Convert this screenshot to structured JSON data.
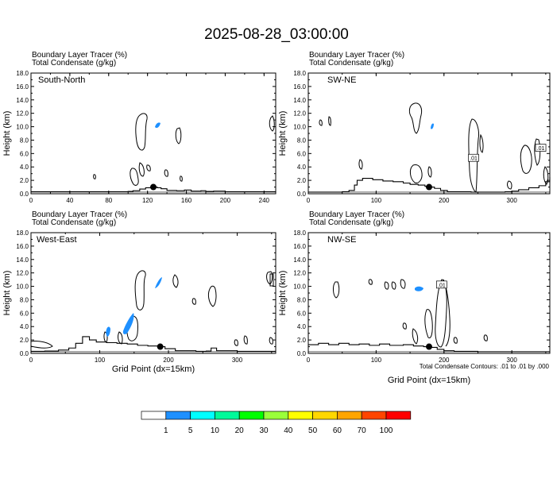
{
  "title": "2025-08-28_03:00:00",
  "panel_header_line1": "Boundary Layer Tracer   (%)",
  "panel_header_line2": "Total Condensate   (g/kg)",
  "ylabel": "Height (km)",
  "xlabel": "Grid Point (dx=15km)",
  "contour_note": "Total Condensate Contours: .01 to .01 by .000",
  "colorbar": {
    "colors": [
      "#ffffff",
      "#1e90ff",
      "#00ffff",
      "#00fa9a",
      "#00ff00",
      "#9aff3a",
      "#ffff00",
      "#ffd700",
      "#ffa500",
      "#ff4500",
      "#ff0000"
    ],
    "labels": [
      "1",
      "5",
      "10",
      "20",
      "30",
      "40",
      "50",
      "60",
      "70",
      "100"
    ]
  },
  "chart_data": [
    {
      "type": "line",
      "panel_label": "South-North",
      "xlim": [
        0,
        252
      ],
      "ylim": [
        0,
        18
      ],
      "x_ticks": [
        0,
        40,
        80,
        120,
        160,
        200,
        240
      ],
      "y_ticks": [
        "0.0",
        "2.0",
        "4.0",
        "6.0",
        "8.0",
        "10.0",
        "12.0",
        "14.0",
        "16.0",
        "18.0"
      ],
      "marker": {
        "x": 126,
        "y": 1.0
      },
      "terrain": [
        [
          0,
          0.3
        ],
        [
          50,
          0.3
        ],
        [
          90,
          0.3
        ],
        [
          100,
          0.35
        ],
        [
          105,
          0.45
        ],
        [
          112,
          0.7
        ],
        [
          118,
          0.9
        ],
        [
          124,
          1.0
        ],
        [
          130,
          0.9
        ],
        [
          134,
          0.75
        ],
        [
          140,
          0.5
        ],
        [
          150,
          0.45
        ],
        [
          158,
          0.55
        ],
        [
          165,
          0.4
        ],
        [
          175,
          0.45
        ],
        [
          180,
          0.35
        ],
        [
          188,
          0.4
        ],
        [
          200,
          0.3
        ],
        [
          230,
          0.3
        ],
        [
          252,
          0.35
        ]
      ],
      "labels": []
    },
    {
      "type": "line",
      "panel_label": "SW-NE",
      "xlim": [
        0,
        356
      ],
      "ylim": [
        0,
        18
      ],
      "x_ticks": [
        0,
        100,
        200,
        300
      ],
      "y_ticks": [
        "0.0",
        "2.0",
        "4.0",
        "6.0",
        "8.0",
        "10.0",
        "12.0",
        "14.0",
        "16.0",
        "18.0"
      ],
      "marker": {
        "x": 178,
        "y": 1.0
      },
      "terrain": [
        [
          0,
          0.25
        ],
        [
          30,
          0.25
        ],
        [
          50,
          0.3
        ],
        [
          60,
          0.5
        ],
        [
          68,
          1.3
        ],
        [
          72,
          2.0
        ],
        [
          80,
          2.3
        ],
        [
          95,
          2.1
        ],
        [
          110,
          1.9
        ],
        [
          125,
          1.8
        ],
        [
          140,
          1.6
        ],
        [
          150,
          1.4
        ],
        [
          162,
          1.3
        ],
        [
          172,
          1.1
        ],
        [
          180,
          1.0
        ],
        [
          186,
          0.8
        ],
        [
          195,
          0.5
        ],
        [
          205,
          0.3
        ],
        [
          240,
          0.25
        ],
        [
          290,
          0.3
        ],
        [
          300,
          0.4
        ],
        [
          310,
          0.6
        ],
        [
          325,
          0.9
        ],
        [
          340,
          1.2
        ],
        [
          350,
          1.8
        ],
        [
          356,
          2.5
        ]
      ],
      "labels": [
        {
          "x": 243,
          "y": 5.3,
          "text": ".01"
        },
        {
          "x": 342,
          "y": 6.8,
          "text": ".01"
        }
      ]
    },
    {
      "type": "line",
      "panel_label": "West-East",
      "xlim": [
        0,
        356
      ],
      "ylim": [
        0,
        18
      ],
      "x_ticks": [
        0,
        100,
        200,
        300
      ],
      "y_ticks": [
        "0.0",
        "2.0",
        "4.0",
        "6.0",
        "8.0",
        "10.0",
        "12.0",
        "14.0",
        "16.0",
        "18.0"
      ],
      "marker": {
        "x": 188,
        "y": 1.0
      },
      "terrain": [
        [
          0,
          0.3
        ],
        [
          20,
          0.35
        ],
        [
          40,
          0.5
        ],
        [
          55,
          0.8
        ],
        [
          65,
          1.5
        ],
        [
          75,
          2.5
        ],
        [
          85,
          2.0
        ],
        [
          95,
          1.7
        ],
        [
          110,
          1.6
        ],
        [
          125,
          1.5
        ],
        [
          140,
          1.4
        ],
        [
          155,
          1.2
        ],
        [
          170,
          1.1
        ],
        [
          185,
          1.0
        ],
        [
          195,
          0.7
        ],
        [
          210,
          0.4
        ],
        [
          240,
          0.3
        ],
        [
          255,
          0.35
        ],
        [
          262,
          0.8
        ],
        [
          270,
          0.4
        ],
        [
          300,
          0.3
        ],
        [
          356,
          0.3
        ]
      ],
      "labels": []
    },
    {
      "type": "line",
      "panel_label": "NW-SE",
      "xlim": [
        0,
        356
      ],
      "ylim": [
        0,
        18
      ],
      "x_ticks": [
        0,
        100,
        200,
        300
      ],
      "y_ticks": [
        "0.0",
        "2.0",
        "4.0",
        "6.0",
        "8.0",
        "10.0",
        "12.0",
        "14.0",
        "16.0",
        "18.0"
      ],
      "marker": {
        "x": 178,
        "y": 1.0
      },
      "terrain": [
        [
          0,
          1.3
        ],
        [
          15,
          1.5
        ],
        [
          30,
          1.3
        ],
        [
          45,
          1.5
        ],
        [
          60,
          1.3
        ],
        [
          75,
          1.4
        ],
        [
          90,
          1.2
        ],
        [
          105,
          1.4
        ],
        [
          120,
          1.2
        ],
        [
          140,
          1.3
        ],
        [
          155,
          1.1
        ],
        [
          170,
          1.0
        ],
        [
          182,
          0.9
        ],
        [
          190,
          0.6
        ],
        [
          200,
          0.4
        ],
        [
          215,
          0.3
        ],
        [
          250,
          0.25
        ],
        [
          300,
          0.25
        ],
        [
          356,
          0.25
        ]
      ],
      "labels": [
        {
          "x": 196,
          "y": 10.2,
          "text": ".01"
        }
      ]
    }
  ]
}
